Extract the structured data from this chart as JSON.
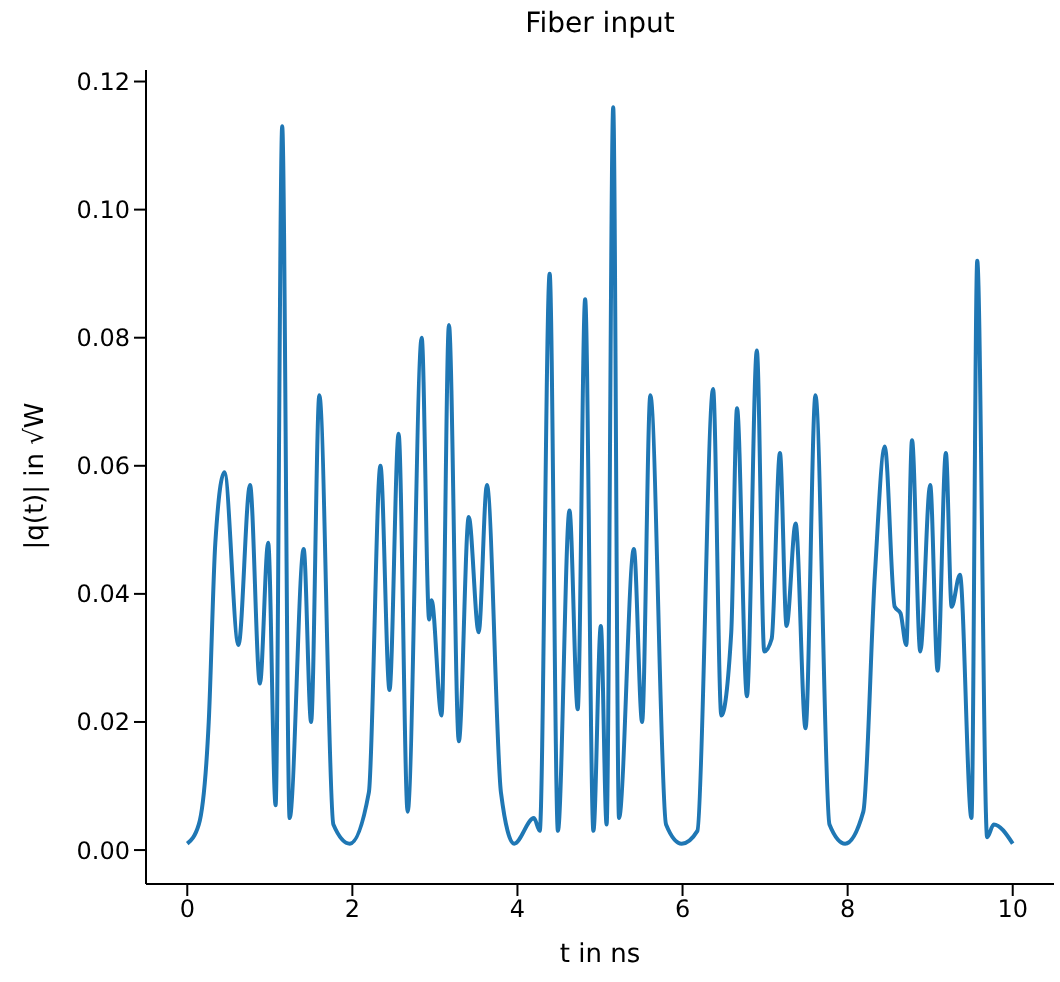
{
  "chart_data": {
    "type": "line",
    "title": "Fiber input",
    "xlabel": "t in ns",
    "ylabel": "|q(t)| in √W",
    "x": [
      0,
      0.14,
      0.26,
      0.34,
      0.45,
      0.62,
      0.76,
      0.88,
      0.98,
      1.07,
      1.15,
      1.24,
      1.41,
      1.5,
      1.6,
      1.77,
      1.97,
      2.2,
      2.34,
      2.45,
      2.56,
      2.67,
      2.84,
      2.93,
      2.96,
      3.08,
      3.17,
      3.29,
      3.41,
      3.53,
      3.63,
      3.8,
      3.96,
      4.2,
      4.27,
      4.39,
      4.49,
      4.63,
      4.73,
      4.82,
      4.92,
      5.01,
      5.08,
      5.16,
      5.23,
      5.41,
      5.51,
      5.61,
      5.8,
      5.99,
      6.18,
      6.37,
      6.47,
      6.59,
      6.66,
      6.78,
      6.9,
      6.99,
      7.08,
      7.18,
      7.26,
      7.37,
      7.49,
      7.61,
      7.78,
      7.97,
      8.19,
      8.33,
      8.45,
      8.57,
      8.64,
      8.71,
      8.78,
      8.88,
      9.0,
      9.09,
      9.19,
      9.26,
      9.36,
      9.5,
      9.57,
      9.69,
      9.77,
      10
    ],
    "series": [
      {
        "color": "#1f77b4",
        "values": [
          0.001,
          0.004,
          0.02,
          0.048,
          0.059,
          0.032,
          0.057,
          0.026,
          0.048,
          0.007,
          0.113,
          0.005,
          0.047,
          0.02,
          0.071,
          0.004,
          0.001,
          0.009,
          0.06,
          0.025,
          0.065,
          0.006,
          0.08,
          0.036,
          0.039,
          0.021,
          0.082,
          0.017,
          0.052,
          0.034,
          0.057,
          0.009,
          0.001,
          0.005,
          0.003,
          0.09,
          0.003,
          0.053,
          0.022,
          0.086,
          0.003,
          0.035,
          0.004,
          0.116,
          0.005,
          0.047,
          0.02,
          0.071,
          0.004,
          0.001,
          0.003,
          0.072,
          0.021,
          0.034,
          0.069,
          0.024,
          0.078,
          0.031,
          0.033,
          0.062,
          0.035,
          0.051,
          0.019,
          0.071,
          0.004,
          0.001,
          0.006,
          0.043,
          0.063,
          0.038,
          0.037,
          0.032,
          0.064,
          0.031,
          0.057,
          0.028,
          0.062,
          0.038,
          0.043,
          0.005,
          0.092,
          0.002,
          0.004,
          0.001
        ]
      }
    ],
    "xlim": [
      -0.5,
      10.5
    ],
    "xticks": [
      0,
      2,
      4,
      6,
      8,
      10
    ],
    "ylim": [
      -0.0053,
      0.1218
    ],
    "yticks": [
      {
        "value": 0,
        "label": "0.00"
      },
      {
        "value": 0.02,
        "label": "0.02"
      },
      {
        "value": 0.04,
        "label": "0.04"
      },
      {
        "value": 0.06,
        "label": "0.06"
      },
      {
        "value": 0.08,
        "label": "0.08"
      },
      {
        "value": 0.1,
        "label": "0.10"
      },
      {
        "value": 0.12,
        "label": "0.12"
      }
    ],
    "grid": false,
    "legend": false,
    "marker": "none",
    "line_style": "solid"
  }
}
